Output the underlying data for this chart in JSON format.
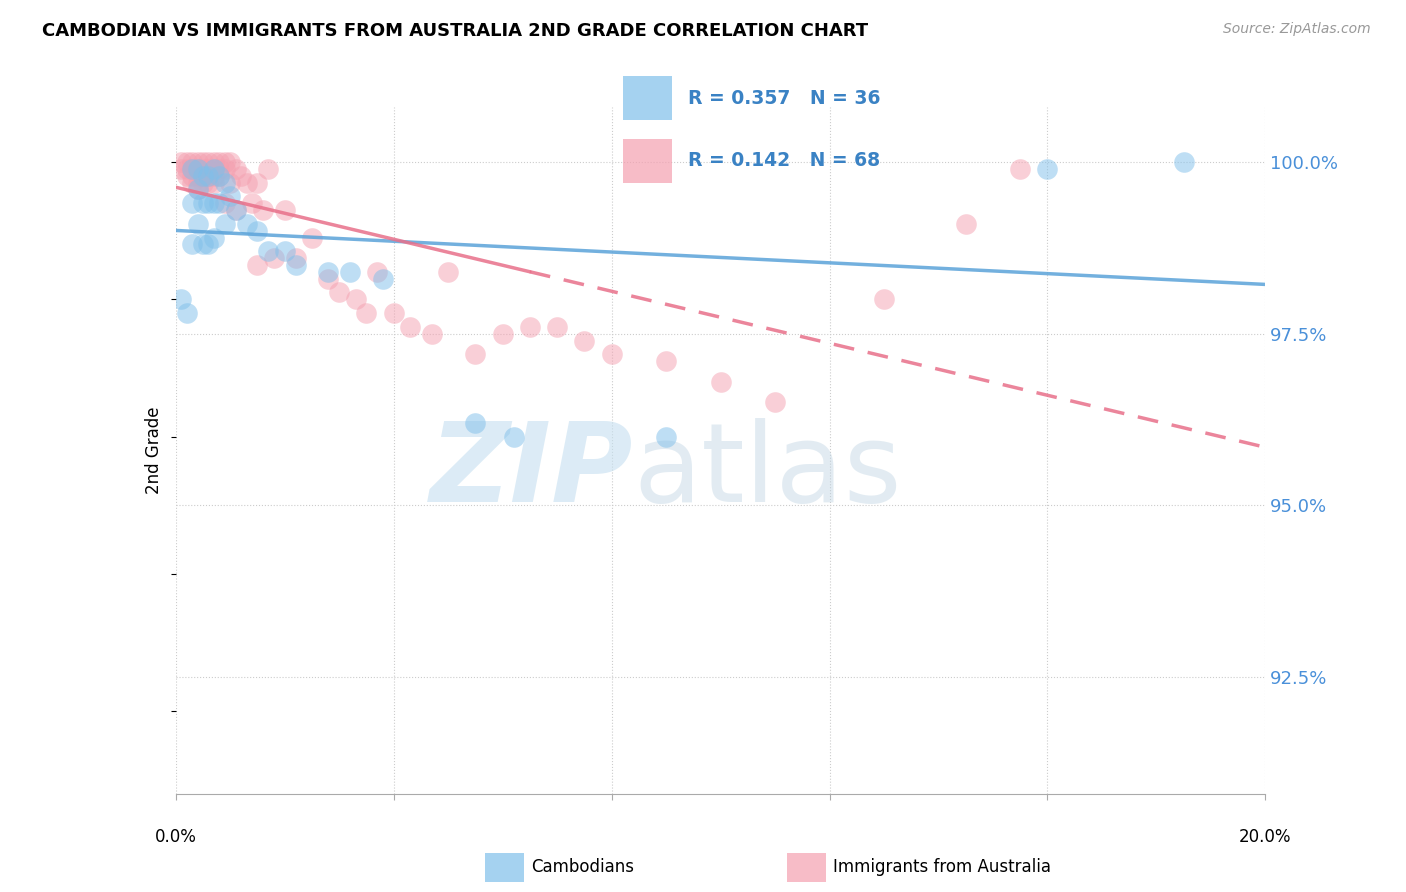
{
  "title": "CAMBODIAN VS IMMIGRANTS FROM AUSTRALIA 2ND GRADE CORRELATION CHART",
  "source": "Source: ZipAtlas.com",
  "ylabel": "2nd Grade",
  "ytick_labels": [
    "100.0%",
    "97.5%",
    "95.0%",
    "92.5%"
  ],
  "ytick_values": [
    1.0,
    0.975,
    0.95,
    0.925
  ],
  "xlim": [
    0.0,
    0.2
  ],
  "ylim": [
    0.908,
    1.008
  ],
  "legend_cambodian": "Cambodians",
  "legend_australia": "Immigrants from Australia",
  "R_cambodian": 0.357,
  "N_cambodian": 36,
  "R_australia": 0.142,
  "N_australia": 68,
  "blue_color": "#7fbfea",
  "pink_color": "#f4a0b0",
  "blue_line_color": "#5ba3d9",
  "pink_line_color": "#e8708a",
  "cambodian_points": [
    [
      0.001,
      0.98
    ],
    [
      0.002,
      0.978
    ],
    [
      0.003,
      0.999
    ],
    [
      0.003,
      0.994
    ],
    [
      0.003,
      0.988
    ],
    [
      0.004,
      0.999
    ],
    [
      0.004,
      0.996
    ],
    [
      0.004,
      0.991
    ],
    [
      0.005,
      0.998
    ],
    [
      0.005,
      0.994
    ],
    [
      0.005,
      0.988
    ],
    [
      0.006,
      0.998
    ],
    [
      0.006,
      0.994
    ],
    [
      0.006,
      0.988
    ],
    [
      0.007,
      0.999
    ],
    [
      0.007,
      0.994
    ],
    [
      0.007,
      0.989
    ],
    [
      0.008,
      0.998
    ],
    [
      0.008,
      0.994
    ],
    [
      0.009,
      0.997
    ],
    [
      0.009,
      0.991
    ],
    [
      0.01,
      0.995
    ],
    [
      0.011,
      0.993
    ],
    [
      0.013,
      0.991
    ],
    [
      0.015,
      0.99
    ],
    [
      0.017,
      0.987
    ],
    [
      0.02,
      0.987
    ],
    [
      0.022,
      0.985
    ],
    [
      0.028,
      0.984
    ],
    [
      0.032,
      0.984
    ],
    [
      0.038,
      0.983
    ],
    [
      0.055,
      0.962
    ],
    [
      0.062,
      0.96
    ],
    [
      0.09,
      0.96
    ],
    [
      0.16,
      0.999
    ],
    [
      0.185,
      1.0
    ]
  ],
  "australia_points": [
    [
      0.001,
      1.0
    ],
    [
      0.001,
      0.999
    ],
    [
      0.002,
      1.0
    ],
    [
      0.002,
      0.999
    ],
    [
      0.002,
      0.998
    ],
    [
      0.003,
      1.0
    ],
    [
      0.003,
      0.999
    ],
    [
      0.003,
      0.998
    ],
    [
      0.003,
      0.997
    ],
    [
      0.004,
      1.0
    ],
    [
      0.004,
      0.999
    ],
    [
      0.004,
      0.998
    ],
    [
      0.004,
      0.997
    ],
    [
      0.004,
      0.996
    ],
    [
      0.005,
      1.0
    ],
    [
      0.005,
      0.999
    ],
    [
      0.005,
      0.998
    ],
    [
      0.005,
      0.997
    ],
    [
      0.006,
      1.0
    ],
    [
      0.006,
      0.999
    ],
    [
      0.006,
      0.998
    ],
    [
      0.006,
      0.997
    ],
    [
      0.007,
      1.0
    ],
    [
      0.007,
      0.999
    ],
    [
      0.007,
      0.998
    ],
    [
      0.007,
      0.997
    ],
    [
      0.008,
      1.0
    ],
    [
      0.008,
      0.999
    ],
    [
      0.008,
      0.998
    ],
    [
      0.009,
      1.0
    ],
    [
      0.009,
      0.999
    ],
    [
      0.009,
      0.994
    ],
    [
      0.01,
      1.0
    ],
    [
      0.01,
      0.997
    ],
    [
      0.011,
      0.999
    ],
    [
      0.011,
      0.993
    ],
    [
      0.012,
      0.998
    ],
    [
      0.013,
      0.997
    ],
    [
      0.014,
      0.994
    ],
    [
      0.015,
      0.997
    ],
    [
      0.015,
      0.985
    ],
    [
      0.016,
      0.993
    ],
    [
      0.017,
      0.999
    ],
    [
      0.018,
      0.986
    ],
    [
      0.02,
      0.993
    ],
    [
      0.022,
      0.986
    ],
    [
      0.025,
      0.989
    ],
    [
      0.028,
      0.983
    ],
    [
      0.03,
      0.981
    ],
    [
      0.033,
      0.98
    ],
    [
      0.035,
      0.978
    ],
    [
      0.037,
      0.984
    ],
    [
      0.04,
      0.978
    ],
    [
      0.043,
      0.976
    ],
    [
      0.047,
      0.975
    ],
    [
      0.05,
      0.984
    ],
    [
      0.055,
      0.972
    ],
    [
      0.06,
      0.975
    ],
    [
      0.065,
      0.976
    ],
    [
      0.07,
      0.976
    ],
    [
      0.075,
      0.974
    ],
    [
      0.08,
      0.972
    ],
    [
      0.09,
      0.971
    ],
    [
      0.1,
      0.968
    ],
    [
      0.11,
      0.965
    ],
    [
      0.13,
      0.98
    ],
    [
      0.145,
      0.991
    ],
    [
      0.155,
      0.999
    ]
  ]
}
